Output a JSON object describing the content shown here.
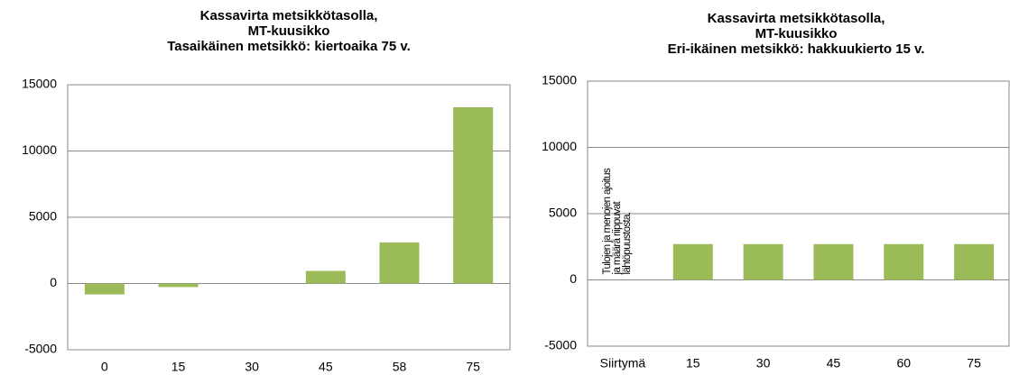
{
  "chart_data": [
    {
      "type": "bar",
      "title": [
        "Kassavirta metsikkötasolla,",
        "MT-kuusikko",
        "Tasaikäinen metsikkö: kiertoaika 75 v."
      ],
      "categories": [
        "0",
        "15",
        "30",
        "45",
        "58",
        "75"
      ],
      "values": [
        -820,
        -270,
        0,
        950,
        3100,
        13300
      ],
      "color": "#9bbb59",
      "ylim": [
        -5000,
        15000
      ],
      "yticks": [
        -5000,
        0,
        5000,
        10000,
        15000
      ],
      "grid": true
    },
    {
      "type": "bar",
      "title": [
        "Kassavirta metsikkötasolla,",
        "MT-kuusikko",
        "Eri-ikäinen metsikkö: hakkuukierto 15 v."
      ],
      "categories": [
        "Siirtymä",
        "15",
        "30",
        "45",
        "60",
        "75"
      ],
      "values": [
        null,
        2700,
        2700,
        2700,
        2700,
        2700
      ],
      "color": "#9bbb59",
      "annotation": [
        "Tulojen ja menojen ajoitus",
        "ja määrä riippuvat",
        "lähtöpuustosta."
      ],
      "ylim": [
        -5000,
        15000
      ],
      "yticks": [
        -5000,
        0,
        5000,
        10000,
        15000
      ],
      "grid": true
    }
  ]
}
